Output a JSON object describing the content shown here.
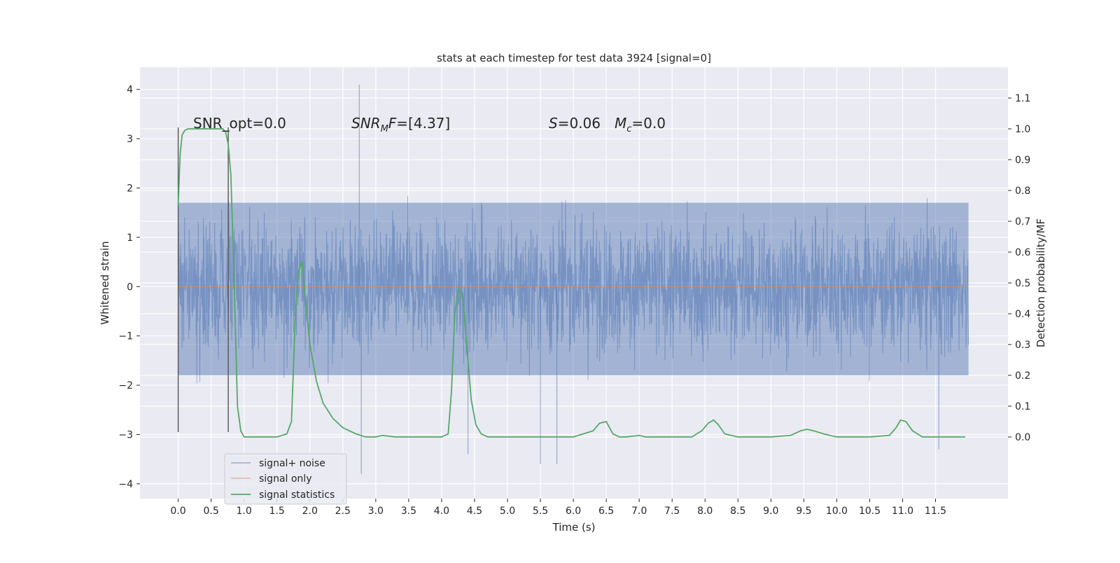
{
  "chart_data": {
    "type": "line",
    "title": "stats at each timestep for test data 3924 [signal=0]",
    "xlabel": "Time (s)",
    "ylabel": "Whitened strain",
    "y2label": "Detection probability/MF",
    "xlim": [
      -0.58,
      12.6
    ],
    "ylim": [
      -4.3,
      4.45
    ],
    "y2lim": [
      -0.2,
      1.2
    ],
    "x_ticks": [
      "0.0",
      "0.5",
      "1.0",
      "1.5",
      "2.0",
      "2.5",
      "3.0",
      "3.5",
      "4.0",
      "4.5",
      "5.0",
      "5.5",
      "6.0",
      "6.5",
      "7.0",
      "7.5",
      "8.0",
      "8.5",
      "9.0",
      "9.5",
      "10.0",
      "10.5",
      "11.0",
      "11.5"
    ],
    "y_ticks": [
      "4",
      "3",
      "2",
      "1",
      "0",
      "−1",
      "−2",
      "−3",
      "−4"
    ],
    "y2_ticks": [
      "1.1",
      "1.0",
      "0.9",
      "0.8",
      "0.7",
      "0.6",
      "0.5",
      "0.4",
      "0.3",
      "0.2",
      "0.1",
      "0.0"
    ],
    "grid": true,
    "legend_position": "lower-left",
    "annotations": {
      "snr_opt": "SNR_opt=0.0",
      "snr_mf_main": "SNR",
      "snr_mf_sub": "M",
      "snr_mf_rest": "F=[4.37]",
      "s_main": "S",
      "s_rest": "=0.06",
      "mc_main": "M",
      "mc_sub": "c",
      "mc_rest": "=0.0"
    },
    "markers": {
      "vertical_lines_x": [
        0.0,
        0.76
      ]
    },
    "series": [
      {
        "name": "signal+ noise",
        "color": "#4c72b0",
        "x_range": [
          0.0,
          12.0
        ],
        "y_envelope": [
          -3.6,
          4.1
        ],
        "y_band": [
          -1.8,
          1.7
        ],
        "notable_spikes": [
          [
            2.75,
            4.1
          ],
          [
            2.78,
            -3.8
          ],
          [
            4.4,
            -3.4
          ],
          [
            5.5,
            -3.6
          ],
          [
            5.75,
            -3.6
          ],
          [
            11.55,
            -3.3
          ]
        ]
      },
      {
        "name": "signal only",
        "color": "#dd8452",
        "x": [
          0.0,
          12.0
        ],
        "y": [
          0.0,
          0.0
        ]
      },
      {
        "name": "signal statistics",
        "color": "#55a868",
        "axis": "right",
        "x": [
          0.0,
          0.03,
          0.06,
          0.1,
          0.15,
          0.2,
          0.3,
          0.4,
          0.5,
          0.6,
          0.68,
          0.72,
          0.76,
          0.8,
          0.85,
          0.9,
          0.95,
          1.0,
          1.1,
          1.5,
          1.65,
          1.72,
          1.78,
          1.83,
          1.88,
          1.93,
          2.0,
          2.1,
          2.2,
          2.35,
          2.5,
          2.7,
          2.85,
          3.0,
          3.1,
          3.3,
          3.6,
          4.0,
          4.1,
          4.15,
          4.2,
          4.25,
          4.32,
          4.38,
          4.45,
          4.52,
          4.6,
          4.7,
          4.85,
          5.0,
          5.5,
          6.0,
          6.3,
          6.4,
          6.5,
          6.55,
          6.6,
          6.7,
          6.8,
          7.0,
          7.1,
          7.5,
          7.8,
          7.95,
          8.05,
          8.13,
          8.2,
          8.3,
          8.5,
          9.0,
          9.3,
          9.45,
          9.55,
          9.65,
          9.8,
          10.0,
          10.5,
          10.8,
          10.9,
          10.97,
          11.05,
          11.15,
          11.3,
          11.5,
          11.95
        ],
        "y": [
          0.75,
          0.92,
          0.98,
          0.995,
          1.0,
          1.0,
          1.0,
          1.0,
          1.0,
          1.0,
          1.0,
          0.99,
          0.95,
          0.85,
          0.5,
          0.1,
          0.02,
          0.0,
          0.0,
          0.0,
          0.01,
          0.05,
          0.4,
          0.54,
          0.57,
          0.45,
          0.3,
          0.18,
          0.11,
          0.06,
          0.03,
          0.01,
          0.0,
          0.0,
          0.005,
          0.0,
          0.0,
          0.0,
          0.01,
          0.15,
          0.4,
          0.48,
          0.46,
          0.3,
          0.12,
          0.04,
          0.01,
          0.0,
          0.0,
          0.0,
          0.0,
          0.0,
          0.02,
          0.045,
          0.05,
          0.03,
          0.01,
          0.0,
          0.0,
          0.005,
          0.0,
          0.0,
          0.0,
          0.02,
          0.045,
          0.055,
          0.04,
          0.01,
          0.0,
          0.0,
          0.005,
          0.02,
          0.025,
          0.02,
          0.01,
          0.0,
          0.0,
          0.005,
          0.03,
          0.055,
          0.05,
          0.02,
          0.0,
          0.0,
          0.0
        ]
      }
    ]
  }
}
